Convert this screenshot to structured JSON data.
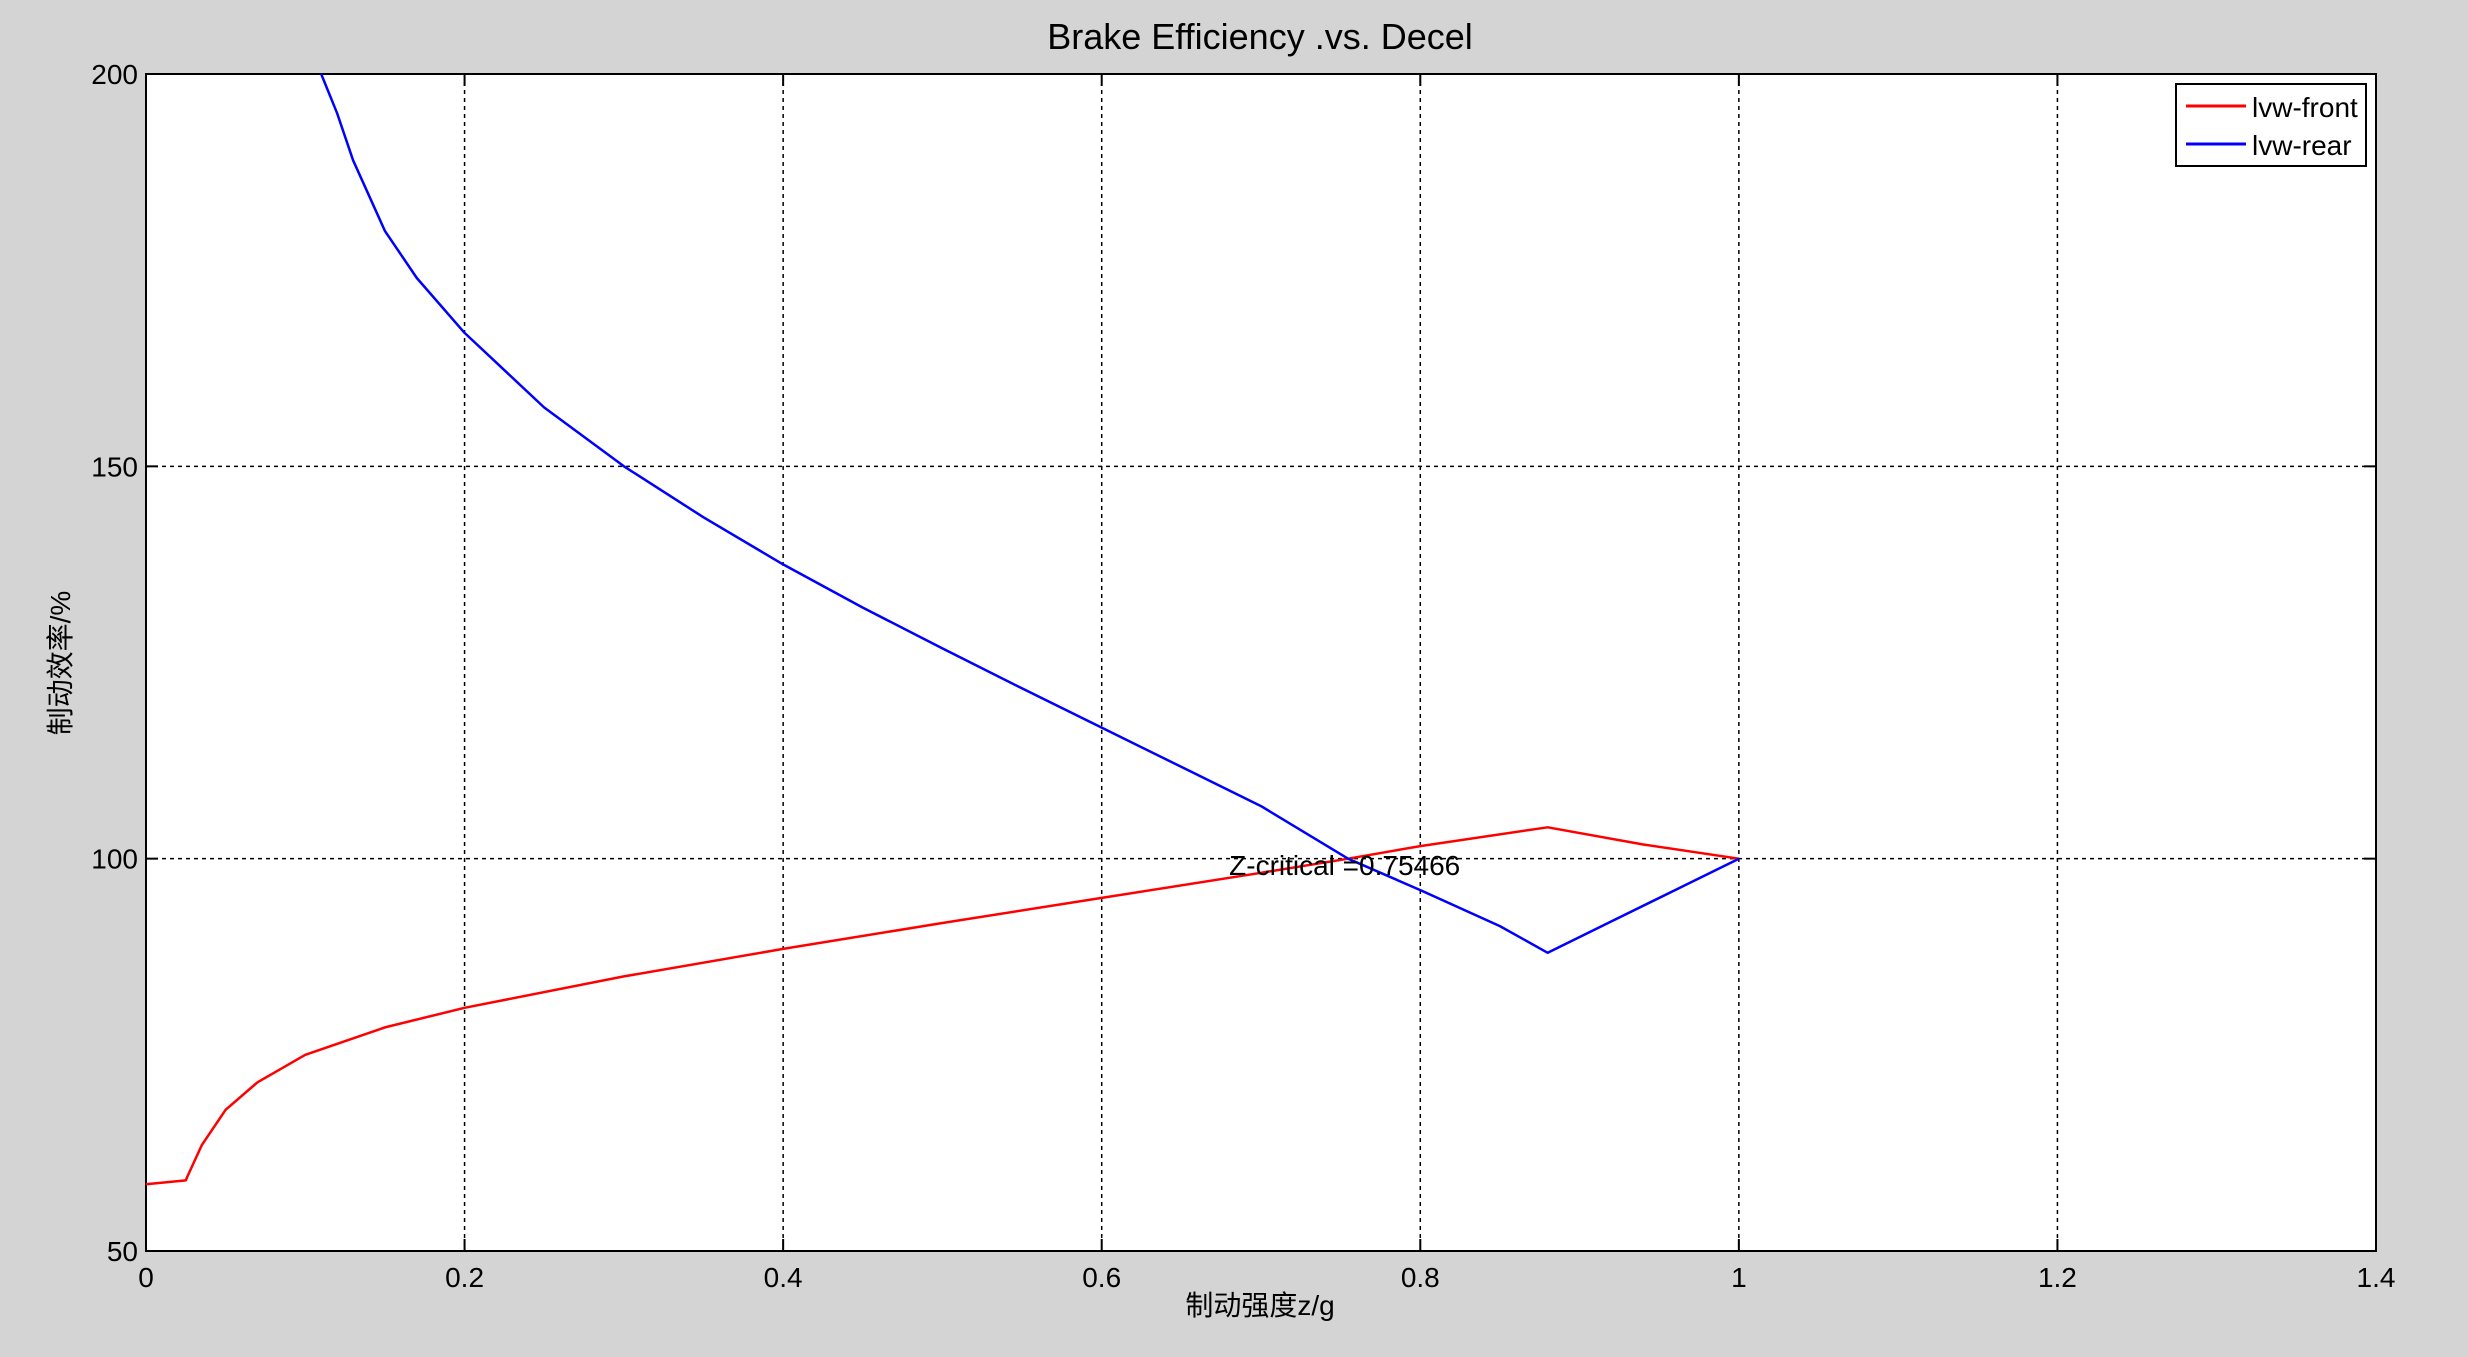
{
  "chart_data": {
    "type": "line",
    "title": "Brake Efficiency .vs. Decel",
    "xlabel": "制动强度z/g",
    "ylabel": "制动效率/%",
    "xlim": [
      0,
      1.4
    ],
    "ylim": [
      50,
      200
    ],
    "xticks": [
      0,
      0.2,
      0.4,
      0.6,
      0.8,
      1,
      1.2,
      1.4
    ],
    "xtick_labels": [
      "0",
      "0.2",
      "0.4",
      "0.6",
      "0.8",
      "1",
      "1.2",
      "1.4"
    ],
    "yticks": [
      50,
      100,
      150,
      200
    ],
    "ytick_labels": [
      "50",
      "100",
      "150",
      "200"
    ],
    "grid": true,
    "legend_position": "top-right",
    "series": [
      {
        "name": "lvw-front",
        "color": "#ff0000",
        "x": [
          0,
          0.025,
          0.026,
          0.035,
          0.05,
          0.07,
          0.1,
          0.15,
          0.2,
          0.3,
          0.4,
          0.5,
          0.6,
          0.7,
          0.75466,
          0.8,
          0.88,
          0.94,
          1.0
        ],
        "y": [
          58.5,
          59.0,
          59.5,
          63.5,
          68.0,
          71.5,
          75.0,
          78.5,
          81.0,
          85.0,
          88.5,
          91.8,
          95.0,
          98.2,
          100.0,
          101.6,
          104.0,
          101.8,
          100.0
        ]
      },
      {
        "name": "lvw-rear",
        "color": "#0000ff",
        "x": [
          0.11,
          0.12,
          0.13,
          0.15,
          0.17,
          0.2,
          0.25,
          0.3,
          0.35,
          0.4,
          0.45,
          0.5,
          0.55,
          0.6,
          0.65,
          0.7,
          0.75466,
          0.8,
          0.85,
          0.88,
          0.92,
          0.96,
          1.0
        ],
        "y": [
          200,
          195,
          189,
          180,
          174,
          167,
          157.5,
          150,
          143.5,
          137.5,
          132,
          126.8,
          121.7,
          116.7,
          111.7,
          106.7,
          100.0,
          96.0,
          91.4,
          88.0,
          92.0,
          96.0,
          100.0
        ]
      }
    ],
    "annotations": [
      {
        "text": "Z-critical =0.75466",
        "x": 0.68,
        "y": 97.9
      }
    ]
  }
}
